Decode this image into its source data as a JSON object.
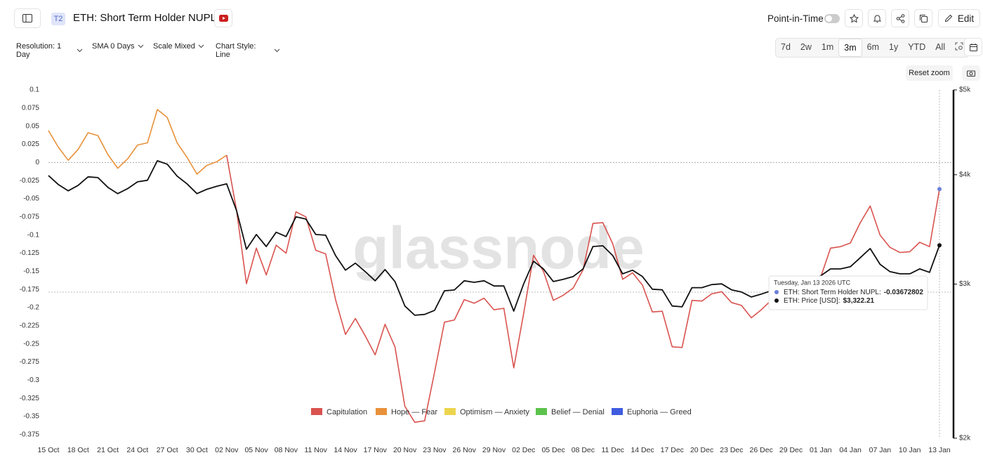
{
  "ui": {
    "badge": "T2",
    "point_in_time": "Point-in-Time",
    "edit": "Edit",
    "controls": [
      "Resolution: 1 Day",
      "SMA 0 Days",
      "Scale Mixed",
      "Chart Style: Line"
    ],
    "ranges": [
      "7d",
      "2w",
      "1m",
      "3m",
      "6m",
      "1y",
      "YTD",
      "All"
    ],
    "active_range": "3m",
    "reset_zoom": "Reset zoom",
    "watermark": "glassnode"
  },
  "chart_data": {
    "type": "line",
    "title": "ETH: Short Term Holder NUPL",
    "categories": [
      "15 Oct",
      null,
      null,
      "18 Oct",
      null,
      null,
      "21 Oct",
      null,
      null,
      "24 Oct",
      null,
      null,
      "27 Oct",
      null,
      null,
      "30 Oct",
      null,
      null,
      "02 Nov",
      null,
      null,
      "05 Nov",
      null,
      null,
      "08 Nov",
      null,
      null,
      "11 Nov",
      null,
      null,
      "14 Nov",
      null,
      null,
      "17 Nov",
      null,
      null,
      "20 Nov",
      null,
      null,
      "23 Nov",
      null,
      null,
      "26 Nov",
      null,
      null,
      "29 Nov",
      null,
      null,
      "02 Dec",
      null,
      null,
      "05 Dec",
      null,
      null,
      "08 Dec",
      null,
      null,
      "11 Dec",
      null,
      null,
      "14 Dec",
      null,
      null,
      "17 Dec",
      null,
      null,
      "20 Dec",
      null,
      null,
      "23 Dec",
      null,
      null,
      "26 Dec",
      null,
      null,
      "29 Dec",
      null,
      null,
      "01 Jan",
      null,
      null,
      "04 Jan",
      null,
      null,
      "07 Jan",
      null,
      null,
      "10 Jan",
      null,
      null,
      "13 Jan"
    ],
    "series": [
      {
        "values": [
          0.044,
          0.021,
          0.003,
          0.018,
          0.041,
          0.037,
          0.011,
          -0.008,
          0.005,
          0.024,
          0.027,
          0.073,
          0.062,
          0.027,
          0.007,
          -0.016,
          -0.004,
          0.001,
          0.01,
          -0.066,
          -0.167,
          -0.118,
          -0.155,
          -0.114,
          -0.125,
          -0.068,
          -0.075,
          -0.121,
          -0.126,
          -0.189,
          -0.237,
          -0.215,
          -0.239,
          -0.265,
          -0.223,
          -0.254,
          -0.336,
          -0.358,
          -0.356,
          -0.289,
          -0.22,
          -0.217,
          -0.189,
          -0.194,
          -0.187,
          -0.203,
          -0.201,
          -0.283,
          -0.208,
          -0.128,
          -0.15,
          -0.19,
          -0.183,
          -0.173,
          -0.148,
          -0.084,
          -0.083,
          -0.112,
          -0.161,
          -0.152,
          -0.169,
          -0.206,
          -0.205,
          -0.254,
          -0.255,
          -0.19,
          -0.191,
          -0.181,
          -0.178,
          -0.193,
          -0.197,
          -0.214,
          -0.203,
          -0.19,
          -0.19,
          -0.18,
          -0.17,
          -0.168,
          -0.158,
          -0.118,
          -0.116,
          -0.111,
          -0.083,
          -0.06,
          -0.1,
          -0.117,
          -0.124,
          -0.123,
          -0.11,
          -0.116,
          -0.03672802
        ],
        "colors": [
          "#e8913a",
          "#e8913a",
          "#e8913a",
          "#e8913a",
          "#e8913a",
          "#e8913a",
          "#e8913a",
          "#e8913a",
          "#e8913a",
          "#e8913a",
          "#e8913a",
          "#e8913a",
          "#e8913a",
          "#e8913a",
          "#e8913a",
          "#e8913a",
          "#e8913a",
          "#e8913a",
          "#e8913a",
          "#d9534f",
          "#d9534f",
          "#d9534f",
          "#d9534f",
          "#d9534f",
          "#d9534f",
          "#d9534f",
          "#d9534f",
          "#d9534f",
          "#d9534f",
          "#d9534f",
          "#d9534f",
          "#d9534f",
          "#d9534f",
          "#d9534f",
          "#d9534f",
          "#d9534f",
          "#d9534f",
          "#d9534f",
          "#d9534f",
          "#d9534f",
          "#d9534f",
          "#d9534f",
          "#d9534f",
          "#d9534f",
          "#d9534f",
          "#d9534f",
          "#d9534f",
          "#d9534f",
          "#d9534f",
          "#d9534f",
          "#d9534f",
          "#d9534f",
          "#d9534f",
          "#d9534f",
          "#d9534f",
          "#d9534f",
          "#d9534f",
          "#d9534f",
          "#d9534f",
          "#d9534f",
          "#d9534f",
          "#d9534f",
          "#d9534f",
          "#d9534f",
          "#d9534f",
          "#d9534f",
          "#d9534f",
          "#d9534f",
          "#d9534f",
          "#d9534f",
          "#d9534f",
          "#d9534f",
          "#d9534f",
          "#d9534f",
          "#d9534f",
          "#d9534f",
          "#d9534f",
          "#d9534f",
          "#d9534f",
          "#d9534f",
          "#d9534f",
          "#d9534f",
          "#d9534f",
          "#d9534f",
          "#d9534f",
          "#d9534f",
          "#d9534f",
          "#d9534f",
          "#d9534f",
          "#d9534f",
          "#d9534f"
        ],
        "marker_color": "#6b7fd7"
      },
      {
        "axis": "y2",
        "color": "#111111",
        "values": [
          3992,
          3898,
          3834,
          3890,
          3978,
          3970,
          3870,
          3806,
          3856,
          3926,
          3942,
          4150,
          4112,
          3985,
          3905,
          3806,
          3850,
          3880,
          3905,
          3640,
          3288,
          3418,
          3312,
          3438,
          3400,
          3580,
          3560,
          3418,
          3412,
          3234,
          3112,
          3170,
          3100,
          3026,
          3117,
          3020,
          2832,
          2764,
          2770,
          2800,
          2948,
          2954,
          3026,
          3014,
          3026,
          2985,
          2985,
          2794,
          3002,
          3186,
          3122,
          3020,
          3038,
          3060,
          3122,
          3312,
          3318,
          3234,
          3082,
          3112,
          3060,
          2960,
          2955,
          2832,
          2826,
          2972,
          2972,
          2996,
          3002,
          2955,
          2938,
          2900,
          2922,
          2948,
          2950,
          2960,
          3000,
          3040,
          3066,
          3122,
          3122,
          3140,
          3216,
          3294,
          3160,
          3100,
          3082,
          3082,
          3122,
          3094,
          3322.21
        ]
      }
    ],
    "ylim": [
      -0.38,
      0.1
    ],
    "yticks": [
      0.1,
      0.075,
      0.05,
      0.025,
      0,
      -0.025,
      -0.05,
      -0.075,
      -0.1,
      -0.125,
      -0.15,
      -0.175,
      -0.2,
      -0.225,
      -0.25,
      -0.275,
      -0.3,
      -0.325,
      -0.35,
      -0.375
    ],
    "y2lim": [
      2000,
      5000
    ],
    "y2_log": true,
    "y2ticks": [
      {
        "value": 2000,
        "label": "$2k"
      },
      {
        "value": 3000,
        "label": "$3k"
      },
      {
        "value": 4000,
        "label": "$4k"
      },
      {
        "value": 5000,
        "label": "$5k"
      }
    ],
    "zero_line": true,
    "grid": false,
    "legend": [
      {
        "name": "Capitulation",
        "color": "#d9534f"
      },
      {
        "name": "Hope — Fear",
        "color": "#e8913a"
      },
      {
        "name": "Optimism — Anxiety",
        "color": "#ecd54e"
      },
      {
        "name": "Belief — Denial",
        "color": "#5cc24c"
      },
      {
        "name": "Euphoria — Greed",
        "color": "#3f5ce0"
      }
    ],
    "tooltip": {
      "title": "Tuesday, Jan 13 2026 UTC",
      "items": [
        {
          "label": "ETH: Short Term Holder NUPL:",
          "value": -0.03672802
        },
        {
          "label": "ETH: Price [USD]:",
          "value": 3322.21,
          "value_label": "$3,322.21"
        }
      ]
    }
  }
}
